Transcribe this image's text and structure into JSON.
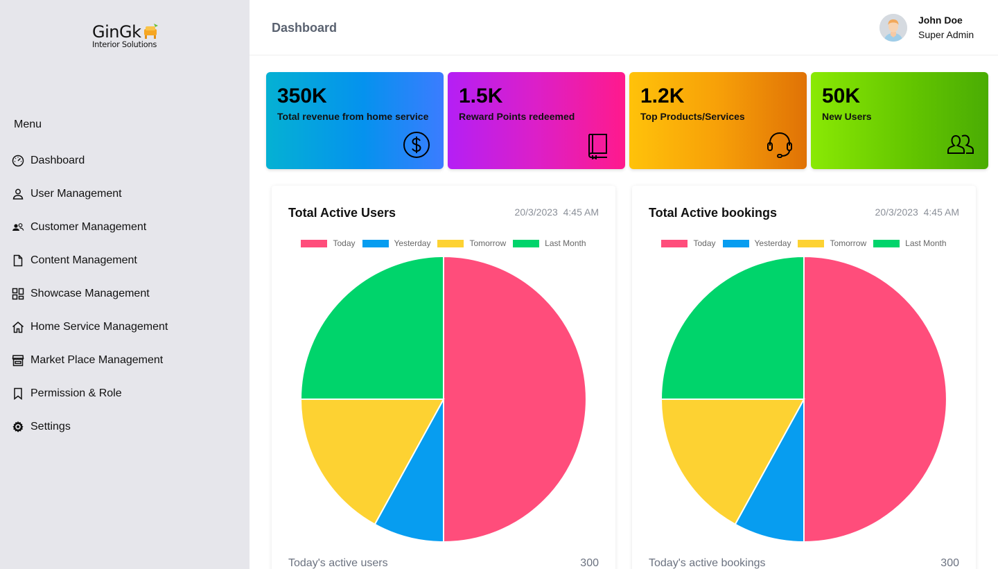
{
  "brand": {
    "name": "GinGk",
    "tagline": "Interior Solutions"
  },
  "sidebar": {
    "heading": "Menu",
    "items": [
      {
        "label": "Dashboard",
        "icon": "speedometer-icon"
      },
      {
        "label": "User Management",
        "icon": "user-icon"
      },
      {
        "label": "Customer Management",
        "icon": "users-icon"
      },
      {
        "label": "Content Management",
        "icon": "document-icon"
      },
      {
        "label": "Showcase Management",
        "icon": "grid-icon"
      },
      {
        "label": "Home Service Management",
        "icon": "home-icon"
      },
      {
        "label": "Market Place Management",
        "icon": "store-icon"
      },
      {
        "label": "Permission & Role",
        "icon": "bookmark-icon"
      },
      {
        "label": "Settings",
        "icon": "gear-icon"
      }
    ]
  },
  "header": {
    "title": "Dashboard",
    "user_name": "John Doe",
    "user_role": "Super Admin"
  },
  "stats": [
    {
      "value": "350K",
      "label": "Total revenue from home service",
      "icon": "dollar-icon"
    },
    {
      "value": "1.5K",
      "label": "Reward Points redeemed",
      "icon": "book-icon"
    },
    {
      "value": "1.2K",
      "label": "Top Products/Services",
      "icon": "headset-icon"
    },
    {
      "value": "50K",
      "label": "New Users",
      "icon": "user-group-icon"
    }
  ],
  "cards": [
    {
      "title": "Total Active Users",
      "date": "20/3/2023",
      "time": "4:45 AM",
      "footer_label": "Today's active users",
      "footer_value": "300"
    },
    {
      "title": "Total Active bookings",
      "date": "20/3/2023",
      "time": "4:45 AM",
      "footer_label": "Today's active bookings",
      "footer_value": "300"
    }
  ],
  "colors": {
    "today": "#ff4d7b",
    "yesterday": "#079df0",
    "tomorrow": "#fdd232",
    "last_month": "#00d46b",
    "sidebar_bg": "#e6e6eb"
  },
  "chart_data": [
    {
      "type": "pie",
      "title": "Total Active Users",
      "categories": [
        "Today",
        "Yesterday",
        "Tomorrow",
        "Last Month"
      ],
      "values": [
        50,
        8,
        17,
        25
      ]
    },
    {
      "type": "pie",
      "title": "Total Active bookings",
      "categories": [
        "Today",
        "Yesterday",
        "Tomorrow",
        "Last Month"
      ],
      "values": [
        50,
        8,
        17,
        25
      ]
    }
  ]
}
